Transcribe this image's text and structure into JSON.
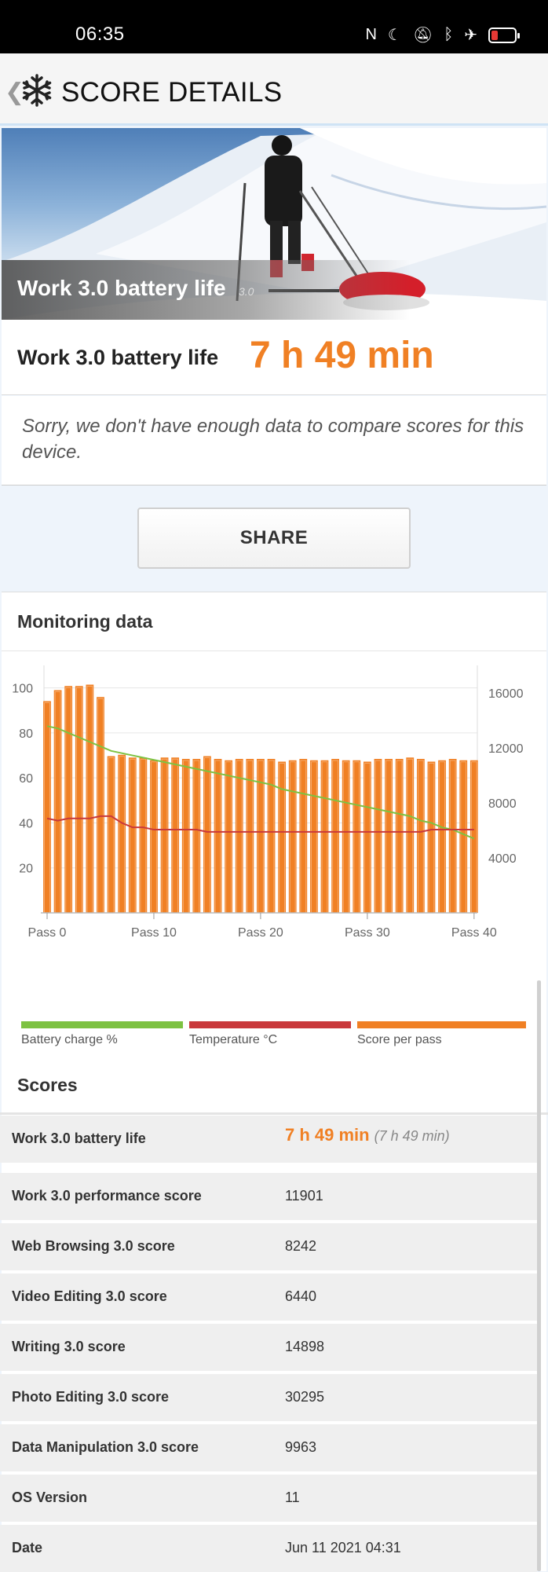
{
  "status": {
    "time": "06:35"
  },
  "appbar": {
    "title": "SCORE DETAILS"
  },
  "hero": {
    "title": "Work 3.0 battery life",
    "version": "3.0"
  },
  "score": {
    "label": "Work 3.0 battery life",
    "value": "7 h 49 min"
  },
  "message": "Sorry, we don't have enough data to compare scores for this device.",
  "share_label": "SHARE",
  "monitoring": {
    "title": "Monitoring data"
  },
  "legend": [
    {
      "label": "Battery charge %",
      "color": "#7dc242"
    },
    {
      "label": "Temperature °C",
      "color": "#c9393b"
    },
    {
      "label": "Score per pass",
      "color": "#f08024"
    }
  ],
  "chart_data": {
    "type": "bar",
    "x_tick_labels": [
      "Pass 0",
      "Pass 10",
      "Pass 20",
      "Pass 30",
      "Pass 40"
    ],
    "left_axis": {
      "ticks": [
        20,
        40,
        60,
        80,
        100
      ],
      "range": [
        0,
        110
      ]
    },
    "right_axis": {
      "ticks": [
        4000,
        8000,
        12000,
        16000
      ],
      "range": [
        0,
        18000
      ]
    },
    "series": [
      {
        "name": "Score per pass",
        "axis": "right",
        "color": "#f08024",
        "values": [
          15400,
          16200,
          16500,
          16500,
          16600,
          15700,
          11400,
          11500,
          11300,
          11300,
          11100,
          11300,
          11300,
          11200,
          11200,
          11400,
          11200,
          11100,
          11200,
          11200,
          11200,
          11200,
          11000,
          11100,
          11200,
          11100,
          11100,
          11200,
          11100,
          11100,
          11000,
          11200,
          11200,
          11200,
          11300,
          11200,
          11000,
          11100,
          11200,
          11100,
          11100
        ]
      },
      {
        "name": "Battery charge %",
        "axis": "left",
        "color": "#7dc242",
        "values": [
          83,
          82,
          80,
          78,
          76,
          74,
          72,
          71,
          70,
          69,
          68,
          67,
          66,
          65,
          64,
          63,
          62,
          61,
          60,
          59,
          58,
          57,
          55,
          54,
          53,
          52,
          51,
          50,
          49,
          48,
          47,
          46,
          45,
          44,
          43,
          41,
          40,
          38,
          37,
          35,
          33
        ]
      },
      {
        "name": "Temperature °C",
        "axis": "left",
        "color": "#c9393b",
        "values": [
          42,
          41,
          42,
          42,
          42,
          43,
          43,
          40,
          38,
          38,
          37,
          37,
          37,
          37,
          37,
          36,
          36,
          36,
          36,
          36,
          36,
          36,
          36,
          36,
          36,
          36,
          36,
          36,
          36,
          36,
          36,
          36,
          36,
          36,
          36,
          36,
          37,
          37,
          37,
          37,
          37
        ]
      }
    ]
  },
  "scores": {
    "title": "Scores",
    "rows": [
      {
        "label": "Work 3.0 battery life",
        "value": "7 h 49 min",
        "value_secondary": "(7 h 49 min)"
      },
      {
        "label": "Work 3.0 performance score",
        "value": "11901"
      },
      {
        "label": "Web Browsing 3.0 score",
        "value": "8242"
      },
      {
        "label": "Video Editing 3.0 score",
        "value": "6440"
      },
      {
        "label": "Writing 3.0 score",
        "value": "14898"
      },
      {
        "label": "Photo Editing 3.0 score",
        "value": "30295"
      },
      {
        "label": "Data Manipulation 3.0 score",
        "value": "9963"
      },
      {
        "label": "OS Version",
        "value": "11"
      },
      {
        "label": "Date",
        "value": "Jun 11 2021 04:31"
      }
    ]
  }
}
